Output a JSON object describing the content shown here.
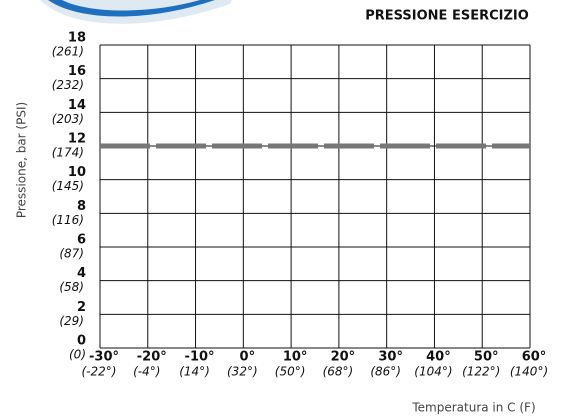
{
  "chart_data": {
    "type": "line",
    "title": "PRESSIONE ESERCIZIO",
    "ylabel": "Pressione, bar (PSI)",
    "xlabel": "Temperatura in C (F)",
    "x": [
      -30,
      60
    ],
    "series": [
      {
        "color": "#777777",
        "values": [
          12,
          12
        ]
      }
    ],
    "xlim": [
      -30,
      60
    ],
    "xticks": [
      {
        "value": -30,
        "label": "-30°"
      },
      {
        "value": -20,
        "label": "-20°"
      },
      {
        "value": -10,
        "label": "-10°"
      },
      {
        "value": 0,
        "label": "0°"
      },
      {
        "value": 10,
        "label": "10°"
      },
      {
        "value": 20,
        "label": "20°"
      },
      {
        "value": 30,
        "label": "30°"
      },
      {
        "value": 40,
        "label": "40°"
      },
      {
        "value": 50,
        "label": "50°"
      },
      {
        "value": 60,
        "label": "60°"
      }
    ],
    "xtick_secondary_labels": [
      "(-22°)",
      "(-4°)",
      "(14°)",
      "(32°)",
      "(50°)",
      "(68°)",
      "(86°)",
      "(104°)",
      "(122°)",
      "(140°)"
    ],
    "ylim": [
      0,
      18
    ],
    "yticks": [
      0,
      2,
      4,
      6,
      8,
      10,
      12,
      14,
      16,
      18
    ],
    "ytick_secondary_labels": [
      "(0)",
      "(29)",
      "(58)",
      "(87)",
      "(116)",
      "(145)",
      "(174)",
      "(203)",
      "(232)",
      "(261)"
    ],
    "grid": true
  }
}
